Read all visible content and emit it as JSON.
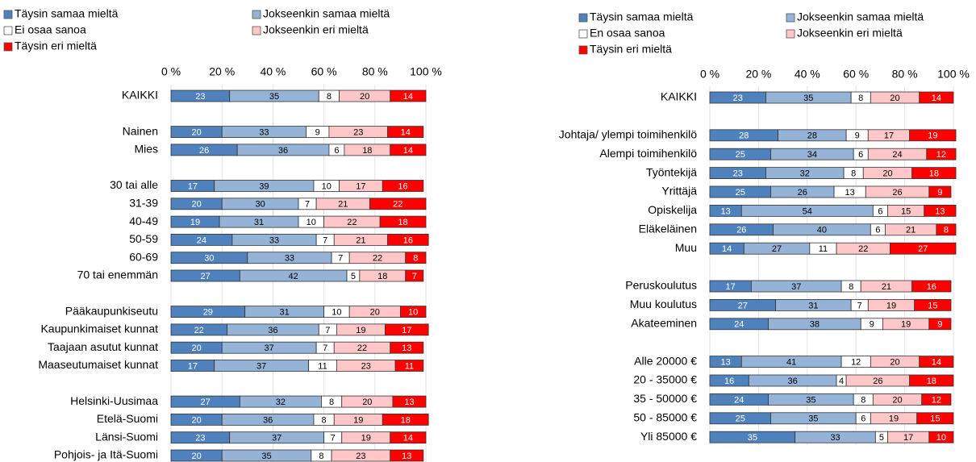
{
  "chart_data": [
    {
      "type": "stacked-bar-horizontal",
      "categories": [
        "KAIKKI",
        null,
        "Nainen",
        "Mies",
        null,
        "30 tai alle",
        "31-39",
        "40-49",
        "50-59",
        "60-69",
        "70 tai enemmän",
        null,
        "Pääkaupunkiseutu",
        "Kaupunkimaiset kunnat",
        "Taajaan asutut kunnat",
        "Maaseutumaiset kunnat",
        null,
        "Helsinki-Uusimaa",
        "Etelä-Suomi",
        "Länsi-Suomi",
        "Pohjois- ja Itä-Suomi"
      ],
      "series": [
        {
          "name": "Täysin samaa mieltä",
          "color": "#4f81bd",
          "values": [
            23,
            null,
            20,
            26,
            null,
            17,
            20,
            19,
            24,
            30,
            27,
            null,
            29,
            22,
            20,
            17,
            null,
            27,
            20,
            23,
            20
          ]
        },
        {
          "name": "Jokseenkin samaa mieltä",
          "color": "#95b3d7",
          "values": [
            35,
            null,
            33,
            36,
            null,
            39,
            30,
            31,
            33,
            33,
            42,
            null,
            31,
            36,
            37,
            37,
            null,
            32,
            36,
            37,
            35
          ]
        },
        {
          "name": "Ei osaa sanoa",
          "color": "#ffffff",
          "values": [
            8,
            null,
            9,
            6,
            null,
            10,
            7,
            10,
            7,
            7,
            5,
            null,
            10,
            7,
            7,
            11,
            null,
            8,
            8,
            7,
            8
          ]
        },
        {
          "name": "Jokseenkin eri mieltä",
          "color": "#ffc7c7",
          "values": [
            20,
            null,
            23,
            18,
            null,
            17,
            21,
            22,
            21,
            22,
            18,
            null,
            20,
            19,
            22,
            23,
            null,
            20,
            19,
            19,
            23
          ]
        },
        {
          "name": "Täysin eri mieltä",
          "color": "#ff0000",
          "values": [
            14,
            null,
            14,
            14,
            null,
            16,
            22,
            18,
            16,
            8,
            7,
            null,
            10,
            17,
            13,
            11,
            null,
            13,
            18,
            14,
            13
          ]
        }
      ],
      "xlim": [
        0,
        100
      ],
      "xticks": [
        {
          "value": 0,
          "label": "0 %"
        },
        {
          "value": 20,
          "label": "20 %"
        },
        {
          "value": 40,
          "label": "40 %"
        },
        {
          "value": 60,
          "label": "60 %"
        },
        {
          "value": 80,
          "label": "80 %"
        },
        {
          "value": 100,
          "label": "100 %"
        }
      ],
      "grid": true
    },
    {
      "type": "stacked-bar-horizontal",
      "categories": [
        "KAIKKI",
        null,
        "Johtaja/ ylempi toimihenkilö",
        "Alempi toimihenkilö",
        "Työntekijä",
        "Yrittäjä",
        "Opiskelija",
        "Eläkeläinen",
        "Muu",
        null,
        "Peruskoulutus",
        "Muu koulutus",
        "Akateeminen",
        null,
        "Alle 20000 €",
        "20 - 35000 €",
        "35 - 50000 €",
        "50 - 85000 €",
        "Yli 85000 €"
      ],
      "series": [
        {
          "name": "Täysin samaa mieltä",
          "color": "#4f81bd",
          "values": [
            23,
            null,
            28,
            25,
            23,
            25,
            13,
            26,
            14,
            null,
            17,
            27,
            24,
            null,
            13,
            16,
            24,
            25,
            35
          ]
        },
        {
          "name": "Jokseenkin samaa mieltä",
          "color": "#95b3d7",
          "values": [
            35,
            null,
            28,
            34,
            32,
            26,
            54,
            40,
            27,
            null,
            37,
            31,
            38,
            null,
            41,
            36,
            35,
            35,
            33
          ]
        },
        {
          "name": "En osaa sanoa",
          "color": "#ffffff",
          "values": [
            8,
            null,
            9,
            6,
            8,
            13,
            6,
            6,
            11,
            null,
            8,
            7,
            9,
            null,
            12,
            4,
            8,
            6,
            5
          ]
        },
        {
          "name": "Jokseenkin eri mieltä",
          "color": "#ffc7c7",
          "values": [
            20,
            null,
            17,
            24,
            20,
            26,
            15,
            21,
            22,
            null,
            21,
            19,
            19,
            null,
            20,
            26,
            20,
            19,
            17
          ]
        },
        {
          "name": "Täysin eri mieltä",
          "color": "#ff0000",
          "values": [
            14,
            null,
            19,
            12,
            18,
            9,
            13,
            8,
            27,
            null,
            16,
            15,
            9,
            null,
            14,
            18,
            12,
            15,
            10
          ]
        }
      ],
      "xlim": [
        0,
        100
      ],
      "xticks": [
        {
          "value": 0,
          "label": "0 %"
        },
        {
          "value": 20,
          "label": "20 %"
        },
        {
          "value": 40,
          "label": "40 %"
        },
        {
          "value": 60,
          "label": "60 %"
        },
        {
          "value": 80,
          "label": "80 %"
        },
        {
          "value": 100,
          "label": "100 %"
        }
      ],
      "grid": true
    }
  ]
}
